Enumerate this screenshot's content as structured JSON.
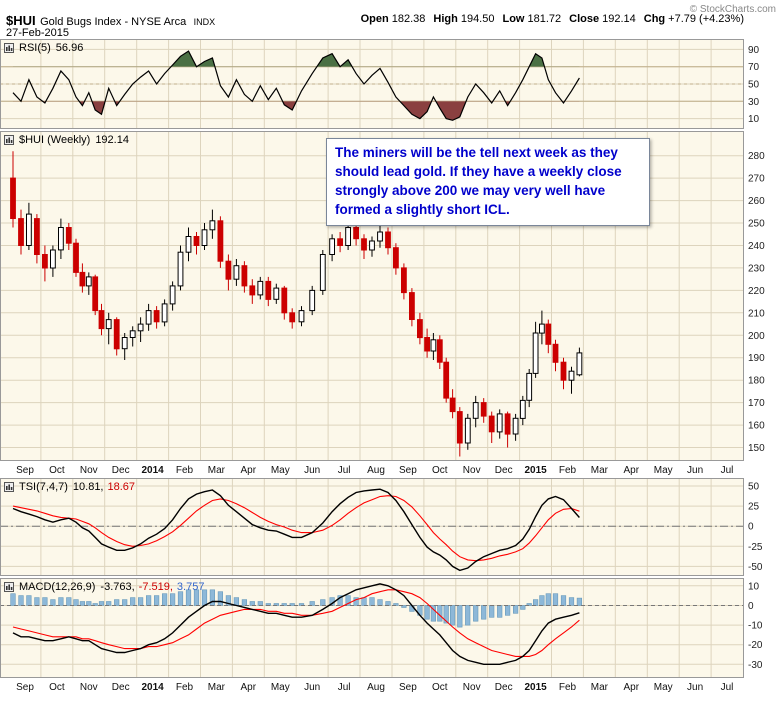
{
  "header": {
    "symbol": "$HUI",
    "name": "Gold Bugs Index - NYSE Arca",
    "exchange": "INDX",
    "date": "27-Feb-2015",
    "quote": [
      {
        "label": "Open",
        "value": "182.38"
      },
      {
        "label": "High",
        "value": "194.50"
      },
      {
        "label": "Low",
        "value": "181.72"
      },
      {
        "label": "Close",
        "value": "192.14"
      },
      {
        "label": "Chg",
        "value": "+7.79 (+4.23%)"
      }
    ],
    "copyright": "© StockCharts.com"
  },
  "panels": {
    "rsi": {
      "label": "RSI(5)",
      "values": [
        {
          "text": "56.96",
          "color": "#000000"
        }
      ]
    },
    "price": {
      "label": "$HUI (Weekly)",
      "values": [
        {
          "text": "192.14",
          "color": "#000000"
        }
      ]
    },
    "tsi": {
      "label": "TSI(7,4,7)",
      "values": [
        {
          "text": "10.81,",
          "color": "#000000"
        },
        {
          "text": "18.67",
          "color": "#cc0000"
        }
      ]
    },
    "macd": {
      "label": "MACD(12,26,9)",
      "values": [
        {
          "text": "-3.763,",
          "color": "#000000"
        },
        {
          "text": "-7.519,",
          "color": "#cc0000"
        },
        {
          "text": "3.757",
          "color": "#3366cc"
        }
      ]
    }
  },
  "annotation": {
    "text": "The miners will be the tell next week as they should lead gold. If they have a weekly close strongly above 200 we may very well have formed a slightly short ICL."
  },
  "chart_data": {
    "type": "candlestick",
    "title": "$HUI Gold Bugs Index (Weekly) with RSI(5), TSI(7,4,7), MACD(12,26,9)",
    "x_axis": {
      "start": "Sep 2013",
      "end": "Jul 2015",
      "labels": [
        "Sep",
        "Oct",
        "Nov",
        "Dec",
        "2014",
        "Feb",
        "Mar",
        "Apr",
        "May",
        "Jun",
        "Jul",
        "Aug",
        "Sep",
        "Oct",
        "Nov",
        "Dec",
        "2015",
        "Feb",
        "Mar",
        "Apr",
        "May",
        "Jun",
        "Jul"
      ],
      "month_start_weeks": [
        0,
        4,
        8,
        13,
        17,
        21,
        25,
        29,
        33,
        37,
        40,
        44,
        48,
        52,
        57,
        61,
        65,
        70,
        74
      ]
    },
    "price": {
      "ylim": [
        144,
        291
      ],
      "yticks": [
        280,
        270,
        260,
        250,
        240,
        230,
        220,
        210,
        200,
        190,
        180,
        170,
        160,
        150
      ],
      "ohlc": [
        [
          270,
          282,
          248,
          252
        ],
        [
          252,
          256,
          236,
          240
        ],
        [
          240,
          259,
          238,
          254
        ],
        [
          252,
          254,
          232,
          236
        ],
        [
          236,
          240,
          224,
          230
        ],
        [
          230,
          240,
          226,
          238
        ],
        [
          238,
          252,
          234,
          248
        ],
        [
          248,
          250,
          238,
          241
        ],
        [
          241,
          243,
          226,
          228
        ],
        [
          228,
          232,
          219,
          222
        ],
        [
          222,
          228,
          218,
          226
        ],
        [
          226,
          227,
          209,
          211
        ],
        [
          211,
          214,
          200,
          203
        ],
        [
          203,
          210,
          196,
          207
        ],
        [
          207,
          208,
          191,
          194
        ],
        [
          194,
          201,
          189,
          199
        ],
        [
          199,
          204,
          195,
          202
        ],
        [
          202,
          208,
          197,
          205
        ],
        [
          205,
          214,
          202,
          211
        ],
        [
          211,
          213,
          203,
          206
        ],
        [
          206,
          216,
          204,
          214
        ],
        [
          214,
          224,
          211,
          222
        ],
        [
          222,
          240,
          220,
          237
        ],
        [
          237,
          248,
          233,
          244
        ],
        [
          244,
          246,
          236,
          240
        ],
        [
          240,
          250,
          238,
          247
        ],
        [
          247,
          256,
          243,
          251
        ],
        [
          251,
          253,
          230,
          233
        ],
        [
          233,
          236,
          220,
          225
        ],
        [
          225,
          234,
          222,
          231
        ],
        [
          231,
          233,
          219,
          222
        ],
        [
          222,
          225,
          214,
          218
        ],
        [
          218,
          226,
          216,
          224
        ],
        [
          224,
          226,
          213,
          216
        ],
        [
          216,
          223,
          214,
          221
        ],
        [
          221,
          222,
          207,
          210
        ],
        [
          210,
          212,
          203,
          206
        ],
        [
          206,
          213,
          204,
          211
        ],
        [
          211,
          222,
          209,
          220
        ],
        [
          220,
          238,
          218,
          236
        ],
        [
          236,
          245,
          233,
          243
        ],
        [
          243,
          246,
          237,
          240
        ],
        [
          240,
          251,
          238,
          248
        ],
        [
          248,
          250,
          240,
          243
        ],
        [
          243,
          245,
          234,
          238
        ],
        [
          238,
          244,
          235,
          242
        ],
        [
          242,
          249,
          239,
          246
        ],
        [
          246,
          248,
          236,
          239
        ],
        [
          239,
          241,
          227,
          230
        ],
        [
          230,
          232,
          216,
          219
        ],
        [
          219,
          221,
          204,
          207
        ],
        [
          207,
          210,
          196,
          199
        ],
        [
          199,
          203,
          190,
          193
        ],
        [
          193,
          201,
          189,
          198
        ],
        [
          198,
          200,
          185,
          188
        ],
        [
          188,
          190,
          170,
          172
        ],
        [
          172,
          176,
          163,
          166
        ],
        [
          166,
          168,
          146,
          152
        ],
        [
          152,
          165,
          149,
          163
        ],
        [
          163,
          173,
          159,
          170
        ],
        [
          170,
          172,
          161,
          164
        ],
        [
          164,
          166,
          152,
          157
        ],
        [
          157,
          167,
          154,
          165
        ],
        [
          165,
          166,
          150,
          156
        ],
        [
          156,
          165,
          153,
          163
        ],
        [
          163,
          173,
          160,
          171
        ],
        [
          171,
          185,
          168,
          183
        ],
        [
          183,
          206,
          181,
          201
        ],
        [
          201,
          211,
          196,
          205
        ],
        [
          205,
          207,
          192,
          196
        ],
        [
          196,
          198,
          184,
          188
        ],
        [
          188,
          190,
          176,
          180
        ],
        [
          180,
          186,
          174,
          184
        ],
        [
          182.38,
          194.5,
          181.72,
          192.14
        ]
      ]
    },
    "rsi": {
      "current": 56.96,
      "ylim": [
        -2,
        102
      ],
      "yticks": [
        90,
        70,
        50,
        30,
        10
      ],
      "overbought": 70,
      "oversold": 30,
      "values": [
        40,
        30,
        55,
        35,
        28,
        45,
        65,
        55,
        35,
        25,
        40,
        20,
        15,
        45,
        25,
        38,
        50,
        58,
        65,
        50,
        62,
        72,
        82,
        88,
        70,
        76,
        80,
        48,
        35,
        55,
        38,
        30,
        48,
        32,
        45,
        26,
        20,
        42,
        62,
        80,
        85,
        70,
        78,
        62,
        50,
        60,
        68,
        52,
        35,
        25,
        15,
        10,
        18,
        35,
        22,
        10,
        8,
        12,
        35,
        50,
        40,
        28,
        42,
        25,
        40,
        55,
        70,
        85,
        80,
        55,
        40,
        28,
        42,
        56.96
      ]
    },
    "tsi": {
      "current_line": 10.81,
      "current_signal": 18.67,
      "ylim": [
        -62,
        60
      ],
      "yticks": [
        50,
        25,
        0,
        -25,
        -50
      ],
      "line": [
        22,
        18,
        15,
        12,
        8,
        5,
        8,
        10,
        5,
        -2,
        -6,
        -14,
        -22,
        -26,
        -30,
        -30,
        -27,
        -22,
        -15,
        -10,
        -3,
        8,
        22,
        34,
        40,
        43,
        45,
        38,
        26,
        18,
        10,
        2,
        -2,
        -5,
        -6,
        -10,
        -14,
        -14,
        -8,
        4,
        18,
        28,
        36,
        42,
        44,
        45,
        46,
        42,
        32,
        18,
        2,
        -14,
        -26,
        -32,
        -36,
        -42,
        -50,
        -55,
        -52,
        -44,
        -38,
        -34,
        -30,
        -28,
        -24,
        -16,
        -4,
        12,
        26,
        34,
        37,
        33,
        22,
        10.81
      ],
      "signal": [
        25,
        23,
        21,
        19,
        16,
        13,
        11,
        10,
        9,
        6,
        3,
        -2,
        -8,
        -14,
        -19,
        -23,
        -25,
        -24,
        -22,
        -18,
        -13,
        -7,
        1,
        10,
        19,
        26,
        32,
        34,
        32,
        28,
        23,
        17,
        11,
        6,
        2,
        -1,
        -5,
        -8,
        -8,
        -5,
        1,
        8,
        16,
        23,
        29,
        33,
        37,
        38,
        37,
        32,
        24,
        13,
        2,
        -8,
        -16,
        -23,
        -31,
        -38,
        -42,
        -43,
        -42,
        -40,
        -37,
        -35,
        -32,
        -28,
        -21,
        -12,
        -2,
        8,
        16,
        21,
        22,
        18.67
      ]
    },
    "macd": {
      "current_line": -3.763,
      "current_signal": -7.519,
      "current_hist": 3.757,
      "ylim": [
        -37,
        14
      ],
      "yticks": [
        10,
        0,
        -10,
        -20,
        -30
      ],
      "line": [
        -14,
        -16,
        -16,
        -17,
        -18,
        -18,
        -17,
        -16,
        -17,
        -18,
        -18,
        -20,
        -22,
        -23,
        -24,
        -24,
        -23,
        -22,
        -20,
        -19,
        -17,
        -14,
        -10,
        -6,
        -3,
        0,
        2,
        2,
        1,
        0,
        -1,
        -2,
        -3,
        -4,
        -4,
        -5,
        -6,
        -6,
        -5,
        -2,
        1,
        4,
        6,
        8,
        9,
        10,
        11,
        10,
        8,
        5,
        0,
        -5,
        -9,
        -12,
        -15,
        -19,
        -23,
        -26,
        -28,
        -29,
        -30,
        -30,
        -30,
        -29,
        -28,
        -26,
        -23,
        -18,
        -13,
        -9,
        -7,
        -6,
        -5,
        -3.763
      ],
      "signal": [
        -11,
        -12,
        -13,
        -14,
        -15,
        -16,
        -16,
        -16,
        -16,
        -17,
        -17,
        -18,
        -19,
        -20,
        -21,
        -22,
        -22,
        -22,
        -21,
        -21,
        -20,
        -19,
        -17,
        -15,
        -12,
        -9,
        -7,
        -5,
        -4,
        -3,
        -2,
        -2,
        -2,
        -3,
        -3,
        -4,
        -4,
        -5,
        -5,
        -4,
        -3,
        -1,
        1,
        3,
        4,
        6,
        7,
        8,
        8,
        7,
        6,
        4,
        1,
        -2,
        -5,
        -8,
        -11,
        -14,
        -17,
        -19,
        -21,
        -23,
        -24,
        -25,
        -26,
        -26,
        -26,
        -25,
        -23,
        -20,
        -17,
        -14,
        -11,
        -7.519
      ],
      "histogram": [
        6,
        5,
        5,
        4,
        4,
        3,
        4,
        4,
        3,
        2,
        2,
        1,
        2,
        2,
        3,
        3,
        4,
        4,
        5,
        5,
        6,
        6,
        7,
        8,
        8,
        8,
        8,
        7,
        5,
        4,
        3,
        2,
        2,
        1,
        1,
        1,
        1,
        1,
        2,
        3,
        4,
        5,
        5,
        4,
        4,
        4,
        3,
        2,
        1,
        -1,
        -3,
        -5,
        -7,
        -8,
        -8,
        -9,
        -10,
        -11,
        -10,
        -8,
        -7,
        -6,
        -6,
        -5,
        -4,
        -2,
        1,
        3,
        5,
        6,
        6,
        5,
        4,
        3.757
      ]
    },
    "colors": {
      "panel_bg": "#fcf8ea",
      "grid": "#ddd4bd",
      "threshold": "#bfae8a",
      "candle_up_stroke": "#000000",
      "candle_up_fill": "#ffffff",
      "candle_down": "#cc0000",
      "rsi_line": "#000000",
      "rsi_overbought_fill": "#4a7044",
      "rsi_oversold_fill": "#8a4040",
      "signal_line": "#ff0000",
      "macd_hist_fill": "#8db8d8",
      "macd_hist_stroke": "#6699bb",
      "annotation_text": "#0000cc"
    }
  }
}
